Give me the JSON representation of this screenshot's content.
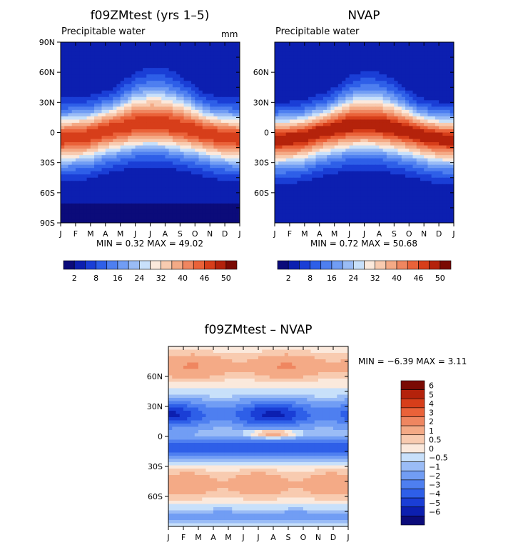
{
  "panels": {
    "top_left": {
      "title": "f09ZMtest (yrs 1–5)",
      "subtitle": "Precipitable water",
      "units": "mm",
      "min_max": "MIN =     0.32  MAX =   49.02"
    },
    "top_right": {
      "title": "NVAP",
      "subtitle": "Precipitable water",
      "min_max": "MIN =     0.72  MAX =   50.68"
    },
    "bottom": {
      "title": "f09ZMtest – NVAP",
      "min_max": "MIN =   −6.39  MAX =     3.11"
    }
  },
  "colors": {
    "abs_scale": [
      "#0b0b7a",
      "#0c1fb0",
      "#1a3ed6",
      "#2e5fe8",
      "#4e7ff0",
      "#719df4",
      "#9abcf6",
      "#c8e0fa",
      "#fbe9dc",
      "#f8cbb0",
      "#f4aa86",
      "#ef8660",
      "#ea6239",
      "#d73e1a",
      "#b4220b",
      "#7a0a03"
    ],
    "diff_scale": [
      "#0b0b7a",
      "#0c1fb0",
      "#1a3ed6",
      "#2e5fe8",
      "#4e7ff0",
      "#719df4",
      "#9abcf6",
      "#c8e0fa",
      "#fbe9dc",
      "#f8cbb0",
      "#f4aa86",
      "#ef8660",
      "#ea6239",
      "#d73e1a",
      "#b4220b",
      "#7a0a03"
    ]
  },
  "chart_data": [
    {
      "type": "heatmap",
      "title": "f09ZMtest (yrs 1–5)",
      "subtitle": "Precipitable water",
      "units": "mm",
      "x_tick_labels": [
        "J",
        "F",
        "M",
        "A",
        "M",
        "J",
        "J",
        "A",
        "S",
        "O",
        "N",
        "D",
        "J"
      ],
      "y_tick_labels": [
        "90N",
        "60N",
        "30N",
        "0",
        "30S",
        "60S",
        "90S"
      ],
      "colorbar_labels": [
        "2",
        "8",
        "16",
        "24",
        "32",
        "40",
        "46",
        "50"
      ],
      "min": 0.32,
      "max": 49.02,
      "lat": [
        90,
        60,
        30,
        0,
        -30,
        -60,
        -90
      ],
      "month_peak_lat": [
        -6,
        -5,
        -3,
        2,
        5,
        8,
        9,
        8,
        5,
        2,
        -2,
        -5,
        -6
      ]
    },
    {
      "type": "heatmap",
      "title": "NVAP",
      "subtitle": "Precipitable water",
      "x_tick_labels": [
        "J",
        "F",
        "M",
        "A",
        "M",
        "J",
        "J",
        "A",
        "S",
        "O",
        "N",
        "D",
        "J"
      ],
      "y_tick_labels": [
        "60N",
        "30N",
        "0",
        "30S",
        "60S"
      ],
      "colorbar_labels": [
        "2",
        "8",
        "16",
        "24",
        "32",
        "40",
        "46",
        "50"
      ],
      "min": 0.72,
      "max": 50.68,
      "month_peak_lat": [
        -6,
        -5,
        -3,
        2,
        5,
        8,
        9,
        8,
        5,
        2,
        -2,
        -5,
        -6
      ]
    },
    {
      "type": "heatmap",
      "title": "f09ZMtest – NVAP",
      "x_tick_labels": [
        "J",
        "F",
        "M",
        "A",
        "M",
        "J",
        "J",
        "A",
        "S",
        "O",
        "N",
        "D",
        "J"
      ],
      "y_tick_labels": [
        "60N",
        "30N",
        "0",
        "30S",
        "60S"
      ],
      "colorbar_labels": [
        "6",
        "5",
        "4",
        "3",
        "2",
        "1",
        "0.5",
        "0",
        "−0.5",
        "−1",
        "−2",
        "−3",
        "−4",
        "−5",
        "−6"
      ],
      "min": -6.39,
      "max": 3.11
    }
  ]
}
